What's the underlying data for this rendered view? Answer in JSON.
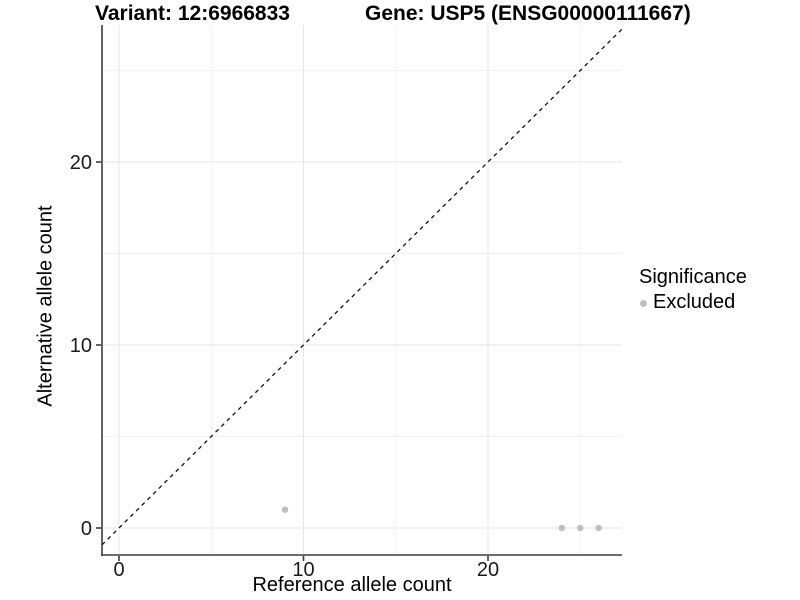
{
  "header": {
    "variant_title": "Variant: 12:6966833",
    "gene_title": "Gene: USP5 (ENSG00000111667)"
  },
  "axes": {
    "x_label": "Reference allele count",
    "y_label": "Alternative allele count"
  },
  "legend": {
    "title": "Significance",
    "items": [
      {
        "label": "Excluded",
        "color": "#bebebe"
      }
    ]
  },
  "colors": {
    "background": "#ffffff",
    "grid_major": "#e6e6e6",
    "grid_minor": "#f2f2f2",
    "axis": "#3c3c3c",
    "tick_text": "#1a1a1a",
    "title_text": "#000000",
    "point": "#bebebe",
    "reference_line": "#111111"
  },
  "chart_data": {
    "type": "scatter",
    "title": "Variant: 12:6966833 — Gene: USP5 (ENSG00000111667)",
    "xlabel": "Reference allele count",
    "ylabel": "Alternative allele count",
    "x_ticks": [
      0,
      10,
      20
    ],
    "y_ticks": [
      0,
      10,
      20
    ],
    "x_minor_ticks": [
      5,
      15,
      25
    ],
    "y_minor_ticks": [
      5,
      15,
      25
    ],
    "xlim": [
      -0.9,
      27.3
    ],
    "ylim": [
      -1.5,
      27.5
    ],
    "grid": true,
    "legend_position": "right",
    "series": [
      {
        "name": "Excluded",
        "color": "#bebebe",
        "points": [
          [
            9,
            1
          ],
          [
            24,
            0
          ],
          [
            25,
            0
          ],
          [
            26,
            0
          ]
        ]
      }
    ],
    "reference_line": {
      "type": "identity",
      "equation": "y = x",
      "style": "dashed",
      "color": "#111111"
    }
  }
}
